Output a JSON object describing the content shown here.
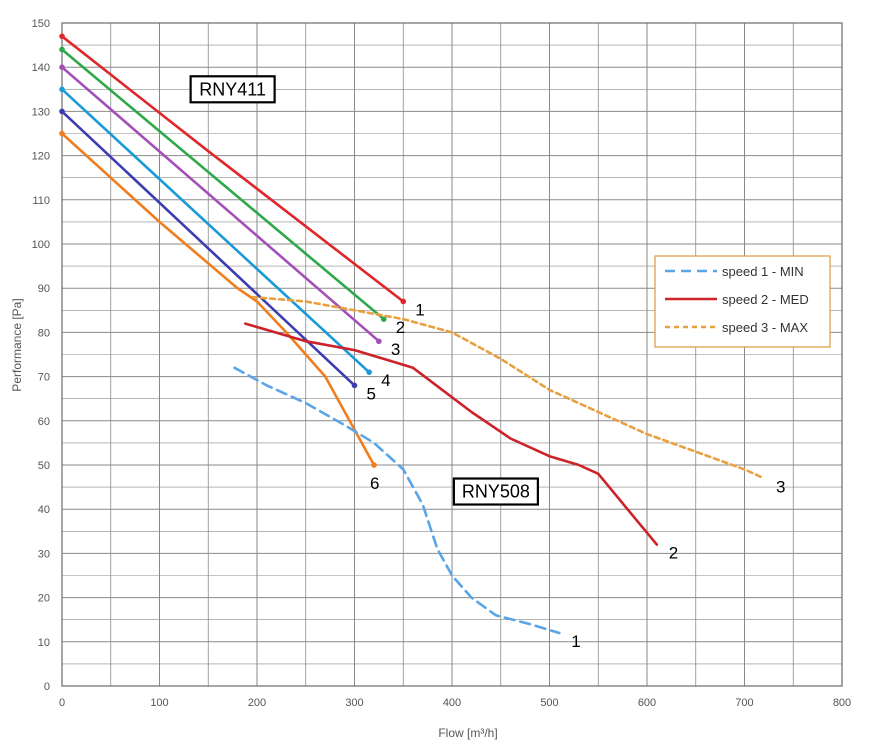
{
  "chart_data": {
    "type": "line",
    "xlabel": "Flow [m³/h]",
    "ylabel": "Performance  [Pa]",
    "xlim": [
      0,
      800
    ],
    "ylim": [
      0,
      150
    ],
    "xticks": [
      "0",
      "100",
      "200",
      "300",
      "400",
      "500",
      "600",
      "700",
      "800"
    ],
    "yticks": [
      "0",
      "10",
      "20",
      "30",
      "40",
      "50",
      "60",
      "70",
      "80",
      "90",
      "100",
      "110",
      "120",
      "130",
      "140",
      "150"
    ],
    "grid": true,
    "legend_position": "right",
    "model_labels": [
      {
        "text": "RNY411",
        "x": 175,
        "y": 135
      },
      {
        "text": "RNY508",
        "x": 445,
        "y": 44
      }
    ],
    "groups": [
      {
        "model": "RNY411",
        "series": [
          {
            "label": "1",
            "color": "#e0262b",
            "points": [
              [
                0,
                147
              ],
              [
                150,
                121
              ],
              [
                350,
                87
              ]
            ]
          },
          {
            "label": "2",
            "color": "#2ea84a",
            "points": [
              [
                0,
                144
              ],
              [
                330,
                83
              ]
            ]
          },
          {
            "label": "3",
            "color": "#a24fb8",
            "points": [
              [
                0,
                140
              ],
              [
                325,
                78
              ]
            ]
          },
          {
            "label": "4",
            "color": "#1a9ad6",
            "points": [
              [
                0,
                135
              ],
              [
                315,
                71
              ]
            ]
          },
          {
            "label": "5",
            "color": "#3c3eb0",
            "points": [
              [
                0,
                130
              ],
              [
                300,
                68
              ]
            ]
          },
          {
            "label": "6",
            "color": "#f07d1e",
            "points": [
              [
                0,
                125
              ],
              [
                100,
                105
              ],
              [
                180,
                90
              ],
              [
                200,
                87
              ],
              [
                230,
                80
              ],
              [
                250,
                75
              ],
              [
                270,
                70
              ],
              [
                290,
                62
              ],
              [
                305,
                56
              ],
              [
                315,
                52
              ],
              [
                320,
                50
              ]
            ]
          }
        ]
      },
      {
        "model": "RNY508",
        "series": [
          {
            "label": "1",
            "name": "speed 1 - MIN",
            "color": "#5aa5e8",
            "dash": "dashed",
            "points": [
              [
                177,
                72
              ],
              [
                210,
                68
              ],
              [
                250,
                64
              ],
              [
                290,
                59
              ],
              [
                320,
                55
              ],
              [
                350,
                49
              ],
              [
                370,
                41
              ],
              [
                385,
                31
              ],
              [
                400,
                25
              ],
              [
                420,
                20
              ],
              [
                445,
                16
              ],
              [
                480,
                14
              ],
              [
                510,
                12
              ]
            ]
          },
          {
            "label": "2",
            "name": "speed 2 - MED",
            "color": "#cc2229",
            "points": [
              [
                188,
                82
              ],
              [
                250,
                78
              ],
              [
                300,
                76
              ],
              [
                330,
                74
              ],
              [
                360,
                72
              ],
              [
                390,
                67
              ],
              [
                420,
                62
              ],
              [
                460,
                56
              ],
              [
                500,
                52
              ],
              [
                530,
                50
              ],
              [
                550,
                48
              ],
              [
                580,
                40
              ],
              [
                610,
                32
              ]
            ]
          },
          {
            "label": "3",
            "name": "speed 3 - MAX",
            "color": "#e8a040",
            "dash": "dotted",
            "points": [
              [
                195,
                88
              ],
              [
                250,
                87
              ],
              [
                300,
                85
              ],
              [
                350,
                83
              ],
              [
                400,
                80
              ],
              [
                450,
                74
              ],
              [
                500,
                67
              ],
              [
                550,
                62
              ],
              [
                600,
                57
              ],
              [
                650,
                53
              ],
              [
                700,
                49
              ],
              [
                720,
                47
              ]
            ]
          }
        ]
      }
    ],
    "legend": [
      {
        "name": "speed 1 - MIN",
        "color": "#5aa5e8",
        "dash": "dashed"
      },
      {
        "name": "speed 2 - MED",
        "color": "#cc2229",
        "dash": "solid"
      },
      {
        "name": "speed 3 - MAX",
        "color": "#e8a040",
        "dash": "dotted"
      }
    ]
  }
}
